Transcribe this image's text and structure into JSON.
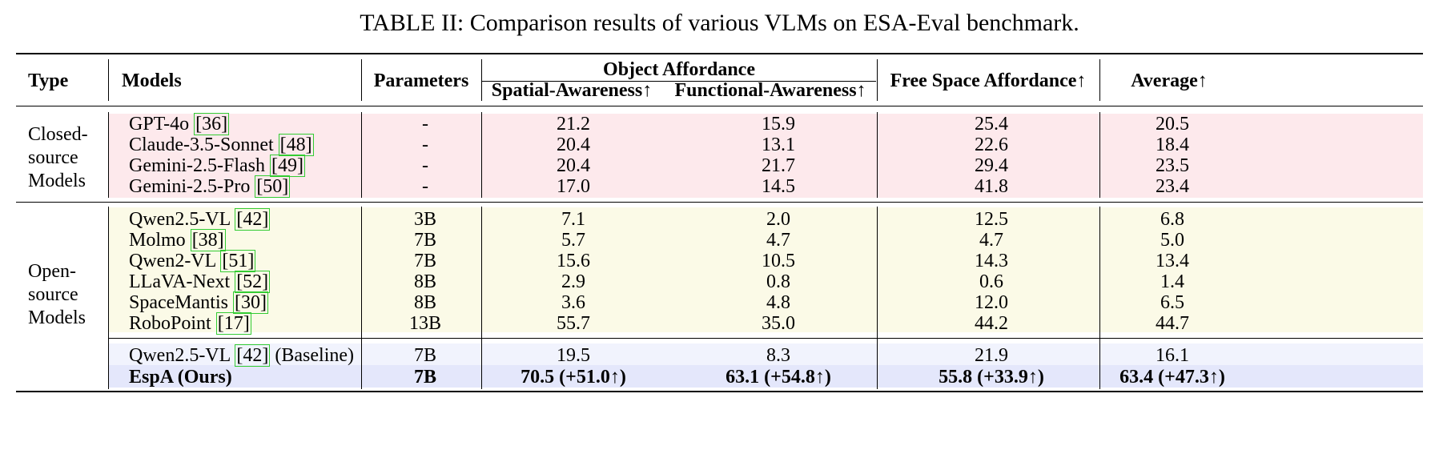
{
  "caption": "TABLE II: Comparison results of various VLMs on ESA-Eval benchmark.",
  "header": {
    "type": "Type",
    "models": "Models",
    "parameters": "Parameters",
    "object_affordance": "Object Affordance",
    "spatial": "Spatial-Awareness↑",
    "functional": "Functional-Awareness↑",
    "free_space": "Free Space Affordance↑",
    "average": "Average↑"
  },
  "groups": {
    "closed": {
      "line1": "Closed-",
      "line2": "source",
      "line3": "Models"
    },
    "open": {
      "line1": "Open-",
      "line2": "source",
      "line3": "Models"
    }
  },
  "rows": [
    {
      "model": "GPT-4o ",
      "ref": "36",
      "params": "-",
      "spatial": "21.2",
      "functional": "15.9",
      "free": "25.4",
      "avg": "20.5"
    },
    {
      "model": "Claude-3.5-Sonnet ",
      "ref": "48",
      "params": "-",
      "spatial": "20.4",
      "functional": "13.1",
      "free": "22.6",
      "avg": "18.4"
    },
    {
      "model": "Gemini-2.5-Flash ",
      "ref": "49",
      "params": "-",
      "spatial": "20.4",
      "functional": "21.7",
      "free": "29.4",
      "avg": "23.5"
    },
    {
      "model": "Gemini-2.5-Pro ",
      "ref": "50",
      "params": "-",
      "spatial": "17.0",
      "functional": "14.5",
      "free": "41.8",
      "avg": "23.4"
    },
    {
      "model": "Qwen2.5-VL ",
      "ref": "42",
      "params": "3B",
      "spatial": "7.1",
      "functional": "2.0",
      "free": "12.5",
      "avg": "6.8"
    },
    {
      "model": "Molmo ",
      "ref": "38",
      "params": "7B",
      "spatial": "5.7",
      "functional": "4.7",
      "free": "4.7",
      "avg": "5.0"
    },
    {
      "model": "Qwen2-VL ",
      "ref": "51",
      "params": "7B",
      "spatial": "15.6",
      "functional": "10.5",
      "free": "14.3",
      "avg": "13.4"
    },
    {
      "model": "LLaVA-Next ",
      "ref": "52",
      "params": "8B",
      "spatial": "2.9",
      "functional": "0.8",
      "free": "0.6",
      "avg": "1.4"
    },
    {
      "model": "SpaceMantis ",
      "ref": "30",
      "params": "8B",
      "spatial": "3.6",
      "functional": "4.8",
      "free": "12.0",
      "avg": "6.5"
    },
    {
      "model": "RoboPoint ",
      "ref": "17",
      "params": "13B",
      "spatial": "55.7",
      "functional": "35.0",
      "free": "44.2",
      "avg": "44.7"
    },
    {
      "model": "Qwen2.5-VL ",
      "ref": "42",
      "suffix": " (Baseline)",
      "params": "7B",
      "spatial": "19.5",
      "functional": "8.3",
      "free": "21.9",
      "avg": "16.1"
    },
    {
      "model": "EspA (Ours)",
      "params": "7B",
      "spatial": "70.5 (+51.0↑)",
      "functional": "63.1 (+54.8↑)",
      "free": "55.8 (+33.9↑)",
      "avg": "63.4 (+47.3↑)"
    }
  ],
  "colors": {
    "closed_bg": "#fde9ec",
    "open_bg": "#fbfae7",
    "baseline_bg": "#f1f3fd",
    "ours_bg": "#e4e7fb",
    "ref_border": "#33cc33"
  }
}
